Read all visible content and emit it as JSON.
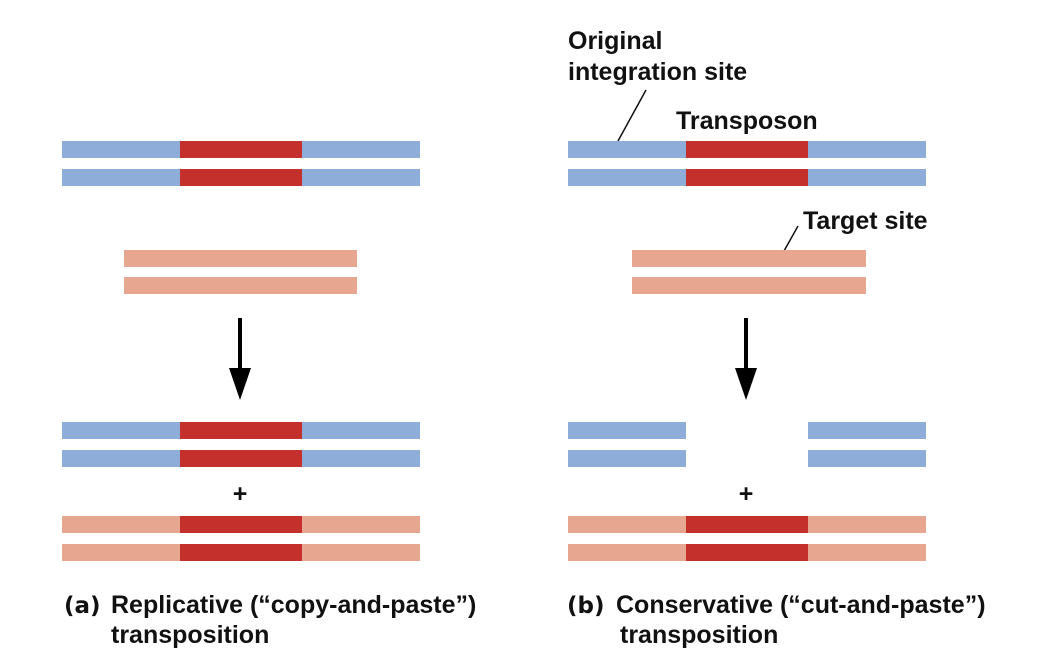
{
  "colors": {
    "host_dna": "#8fadd9",
    "transposon": "#c4302b",
    "target_dna": "#e6a68f"
  },
  "labels": {
    "original_line1": "Original",
    "original_line2": "integration site",
    "transposon": "Transposon",
    "target_site": "Target site",
    "plus": "+"
  },
  "panel_a": {
    "letter": "(a)",
    "caption_line1": "Replicative (“copy-and-paste”)",
    "caption_line2": "transposition"
  },
  "panel_b": {
    "letter": "(b)",
    "caption_line1": "Conservative (“cut-and-paste”)",
    "caption_line2": "transposition"
  }
}
